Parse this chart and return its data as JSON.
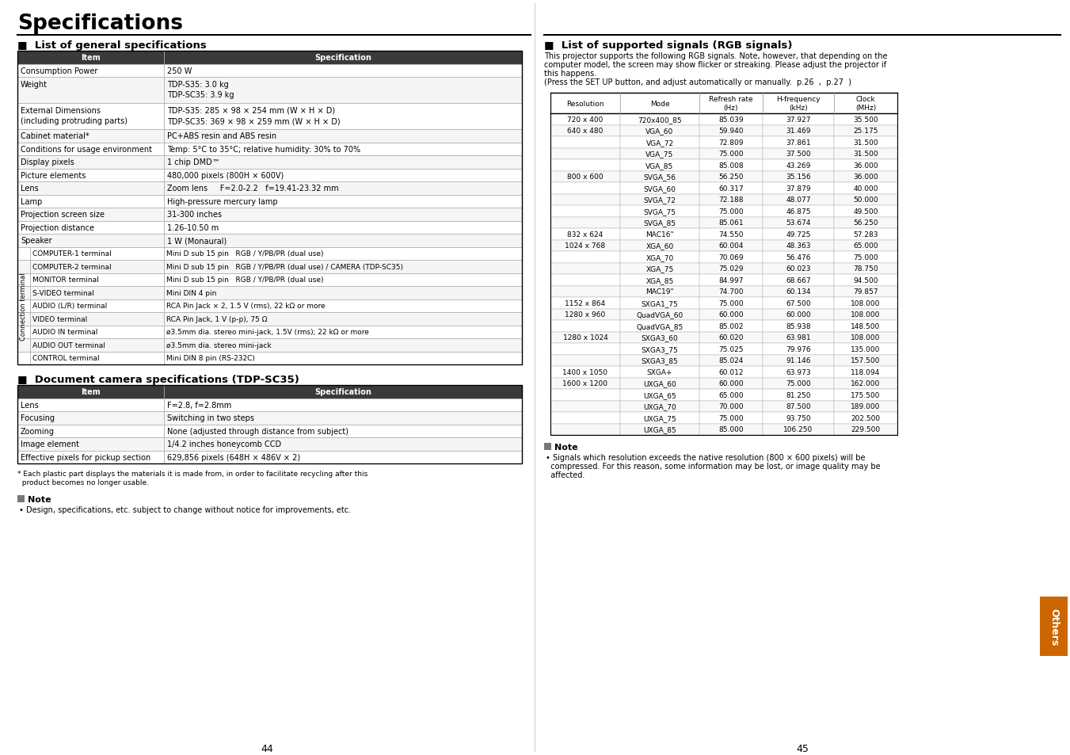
{
  "title": "Specifications",
  "bg_color": "#ffffff",
  "left_section_title": "List of general specifications",
  "right_section_title": "List of supported signals (RGB signals)",
  "doc_cam_title": "Document camera specifications (TDP-SC35)",
  "general_specs_headers": [
    "Item",
    "Specification"
  ],
  "general_specs": [
    [
      "Consumption Power",
      "250 W",
      1
    ],
    [
      "Weight",
      "TDP-S35: 3.0 kg\nTDP-SC35: 3.9 kg",
      2
    ],
    [
      "External Dimensions\n(including protruding parts)",
      "TDP-S35: 285 × 98 × 254 mm (W × H × D)\nTDP-SC35: 369 × 98 × 259 mm (W × H × D)",
      2
    ],
    [
      "Cabinet material*",
      "PC+ABS resin and ABS resin",
      1
    ],
    [
      "Conditions for usage environment",
      "Temp: 5°C to 35°C; relative humidity: 30% to 70%",
      1
    ],
    [
      "Display pixels",
      "1 chip DMD™",
      1
    ],
    [
      "Picture elements",
      "480,000 pixels (800H × 600V)",
      1
    ],
    [
      "Lens",
      "Zoom lens     F=2.0-2.2   f=19.41-23.32 mm",
      1
    ],
    [
      "Lamp",
      "High-pressure mercury lamp",
      1
    ],
    [
      "Projection screen size",
      "31-300 inches",
      1
    ],
    [
      "Projection distance",
      "1.26-10.50 m",
      1
    ],
    [
      "Speaker",
      "1 W (Monaural)",
      1
    ]
  ],
  "connection_terminal_rows": [
    [
      "COMPUTER-1 terminal",
      "Mini D sub 15 pin   RGB / Y/PB/PR (dual use)"
    ],
    [
      "COMPUTER-2 terminal",
      "Mini D sub 15 pin   RGB / Y/PB/PR (dual use) / CAMERA (TDP-SC35)"
    ],
    [
      "MONITOR terminal",
      "Mini D sub 15 pin   RGB / Y/PB/PR (dual use)"
    ],
    [
      "S-VIDEO terminal",
      "Mini DIN 4 pin"
    ],
    [
      "AUDIO (L/R) terminal",
      "RCA Pin Jack × 2, 1.5 V (rms), 22 kΩ or more"
    ],
    [
      "VIDEO terminal",
      "RCA Pin Jack, 1 V (p-p), 75 Ω"
    ],
    [
      "AUDIO IN terminal",
      "ø3.5mm dia. stereo mini-jack, 1.5V (rms); 22 kΩ or more"
    ],
    [
      "AUDIO OUT terminal",
      "ø3.5mm dia. stereo mini-jack"
    ],
    [
      "CONTROL terminal",
      "Mini DIN 8 pin (RS-232C)"
    ]
  ],
  "doc_cam_headers": [
    "Item",
    "Specification"
  ],
  "doc_cam_specs": [
    [
      "Lens",
      "F=2.8, f=2.8mm"
    ],
    [
      "Focusing",
      "Switching in two steps"
    ],
    [
      "Zooming",
      "None (adjusted through distance from subject)"
    ],
    [
      "Image element",
      "1/4.2 inches honeycomb CCD"
    ],
    [
      "Effective pixels for pickup section",
      "629,856 pixels (648H × 486V × 2)"
    ]
  ],
  "footnote_line1": "* Each plastic part displays the materials it is made from, in order to facilitate recycling after this",
  "footnote_line2": "  product becomes no longer usable.",
  "left_note_text": "Design, specifications, etc. subject to change without notice for improvements, etc.",
  "rgb_intro_lines": [
    "This projector supports the following RGB signals. Note, however, that depending on the",
    "computer model, the screen may show flicker or streaking. Please adjust the projector if",
    "this happens.",
    "(Press the SET UP button, and adjust automatically or manually.  p.26  ,  p.27  )"
  ],
  "rgb_headers": [
    "Resolution",
    "Mode",
    "Refresh rate\n(Hz)",
    "H-frequency\n(kHz)",
    "Clock\n(MHz)"
  ],
  "rgb_signals": [
    [
      "720 x 400",
      "720x400_85",
      "85.039",
      "37.927",
      "35.500"
    ],
    [
      "640 x 480",
      "VGA_60",
      "59.940",
      "31.469",
      "25.175"
    ],
    [
      "",
      "VGA_72",
      "72.809",
      "37.861",
      "31.500"
    ],
    [
      "",
      "VGA_75",
      "75.000",
      "37.500",
      "31.500"
    ],
    [
      "",
      "VGA_85",
      "85.008",
      "43.269",
      "36.000"
    ],
    [
      "800 x 600",
      "SVGA_56",
      "56.250",
      "35.156",
      "36.000"
    ],
    [
      "",
      "SVGA_60",
      "60.317",
      "37.879",
      "40.000"
    ],
    [
      "",
      "SVGA_72",
      "72.188",
      "48.077",
      "50.000"
    ],
    [
      "",
      "SVGA_75",
      "75.000",
      "46.875",
      "49.500"
    ],
    [
      "",
      "SVGA_85",
      "85.061",
      "53.674",
      "56.250"
    ],
    [
      "832 x 624",
      "MAC16\"",
      "74.550",
      "49.725",
      "57.283"
    ],
    [
      "1024 x 768",
      "XGA_60",
      "60.004",
      "48.363",
      "65.000"
    ],
    [
      "",
      "XGA_70",
      "70.069",
      "56.476",
      "75.000"
    ],
    [
      "",
      "XGA_75",
      "75.029",
      "60.023",
      "78.750"
    ],
    [
      "",
      "XGA_85",
      "84.997",
      "68.667",
      "94.500"
    ],
    [
      "",
      "MAC19\"",
      "74.700",
      "60.134",
      "79.857"
    ],
    [
      "1152 x 864",
      "SXGA1_75",
      "75.000",
      "67.500",
      "108.000"
    ],
    [
      "1280 x 960",
      "QuadVGA_60",
      "60.000",
      "60.000",
      "108.000"
    ],
    [
      "",
      "QuadVGA_85",
      "85.002",
      "85.938",
      "148.500"
    ],
    [
      "1280 x 1024",
      "SXGA3_60",
      "60.020",
      "63.981",
      "108.000"
    ],
    [
      "",
      "SXGA3_75",
      "75.025",
      "79.976",
      "135.000"
    ],
    [
      "",
      "SXGA3_85",
      "85.024",
      "91.146",
      "157.500"
    ],
    [
      "1400 x 1050",
      "SXGA+",
      "60.012",
      "63.973",
      "118.094"
    ],
    [
      "1600 x 1200",
      "UXGA_60",
      "60.000",
      "75.000",
      "162.000"
    ],
    [
      "",
      "UXGA_65",
      "65.000",
      "81.250",
      "175.500"
    ],
    [
      "",
      "UXGA_70",
      "70.000",
      "87.500",
      "189.000"
    ],
    [
      "",
      "UXGA_75",
      "75.000",
      "93.750",
      "202.500"
    ],
    [
      "",
      "UXGA_85",
      "85.000",
      "106.250",
      "229.500"
    ]
  ],
  "right_note_lines": [
    "Signals which resolution exceeds the native resolution (800 × 600 pixels) will be",
    "compressed. For this reason, some information may be lost, or image quality may be",
    "affected."
  ],
  "page_left": "44",
  "page_right": "45",
  "others_tab_color": "#cc6600",
  "header_bg": "#3a3a3a",
  "header_fg": "#ffffff",
  "border_color": "#aaaaaa",
  "link_bg": "#336699"
}
